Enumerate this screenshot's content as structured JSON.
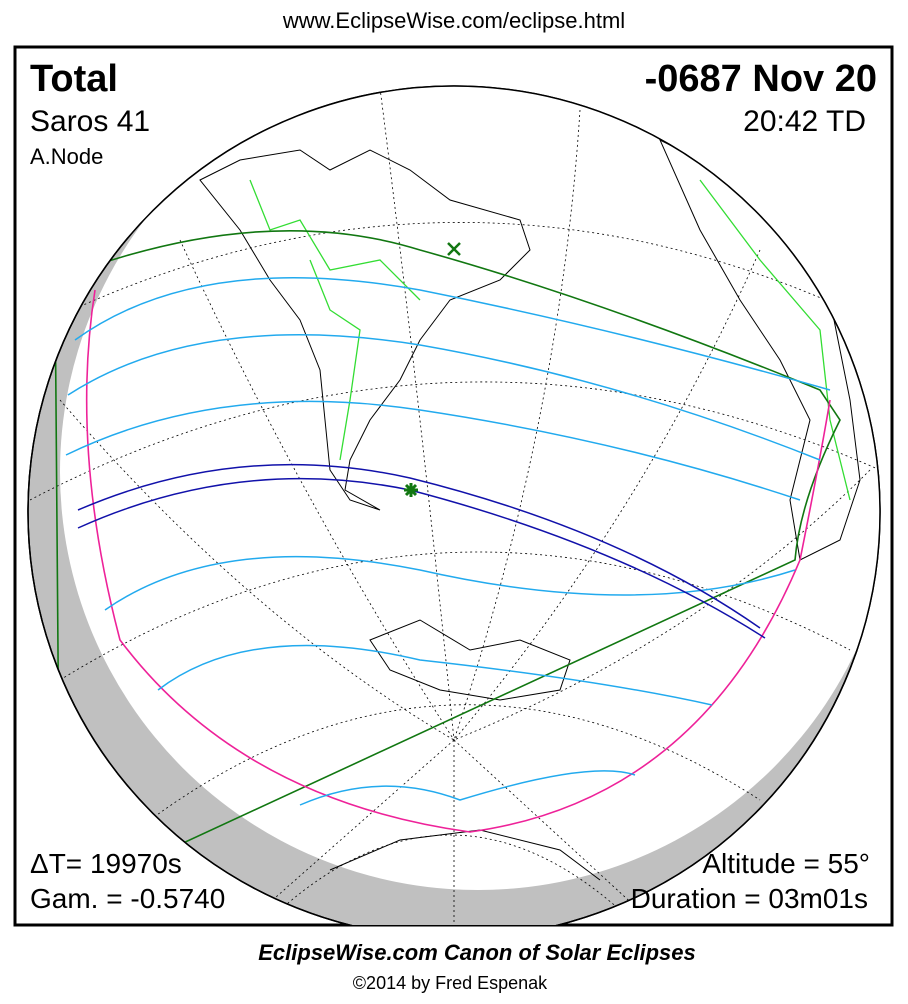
{
  "header": {
    "url": "www.EclipseWise.com/eclipse.html"
  },
  "info": {
    "eclipse_type": "Total",
    "saros": "Saros  41",
    "node": "A.Node",
    "date": "-0687 Nov 20",
    "time": "20:42 TD",
    "delta_t": "ΔT=  19970s",
    "gamma": "Gam. = -0.5740",
    "altitude": "Altitude = 55°",
    "duration": "Duration = 03m01s"
  },
  "footer": {
    "title": "EclipseWise.com Canon of Solar Eclipses",
    "copyright": "©2014 by Fred Espenak"
  }
}
